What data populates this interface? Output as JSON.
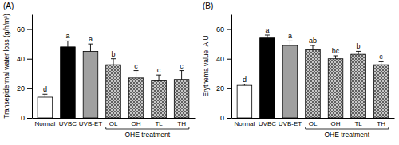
{
  "chart_data": [
    {
      "type": "bar",
      "title": "(A)",
      "y_label": "Transepidermal water loss (g/h/m²)",
      "categories": [
        "Normal",
        "UVBC",
        "UVB-ET",
        "OL",
        "OH",
        "TL",
        "TH"
      ],
      "values": [
        14,
        48,
        45,
        36,
        27,
        25,
        26
      ],
      "errors": [
        2,
        4,
        5,
        4,
        5,
        4,
        6
      ],
      "significance": [
        "d",
        "a",
        "a",
        "b",
        "c",
        "c",
        "c"
      ],
      "colors": [
        "#ffffff",
        "#000000",
        "#a0a0a0",
        "#c8c8c8",
        "#c8c8c8",
        "#c8c8c8",
        "#c8c8c8"
      ],
      "annotations": [
        {
          "text": "OHE treatment",
          "from": 3,
          "to": 6
        }
      ],
      "ylim": [
        0,
        70
      ],
      "yticks": [
        0,
        20,
        40,
        60
      ]
    },
    {
      "type": "bar",
      "title": "(B)",
      "y_label": "Erythema value, A.U",
      "categories": [
        "Normal",
        "UVBC",
        "UVB-ET",
        "OL",
        "OH",
        "TL",
        "TH"
      ],
      "values": [
        22,
        54,
        49,
        46,
        40,
        43,
        36
      ],
      "errors": [
        0.8,
        2,
        3,
        3,
        2,
        2,
        2
      ],
      "significance": [
        "d",
        "a",
        "a",
        "ab",
        "bc",
        "b",
        "c"
      ],
      "colors": [
        "#ffffff",
        "#000000",
        "#a0a0a0",
        "#c8c8c8",
        "#c8c8c8",
        "#c8c8c8",
        "#c8c8c8"
      ],
      "annotations": [
        {
          "text": "OHE treatment",
          "from": 3,
          "to": 6
        }
      ],
      "ylim": [
        0,
        70
      ],
      "yticks": [
        0,
        20,
        40,
        60
      ]
    }
  ]
}
